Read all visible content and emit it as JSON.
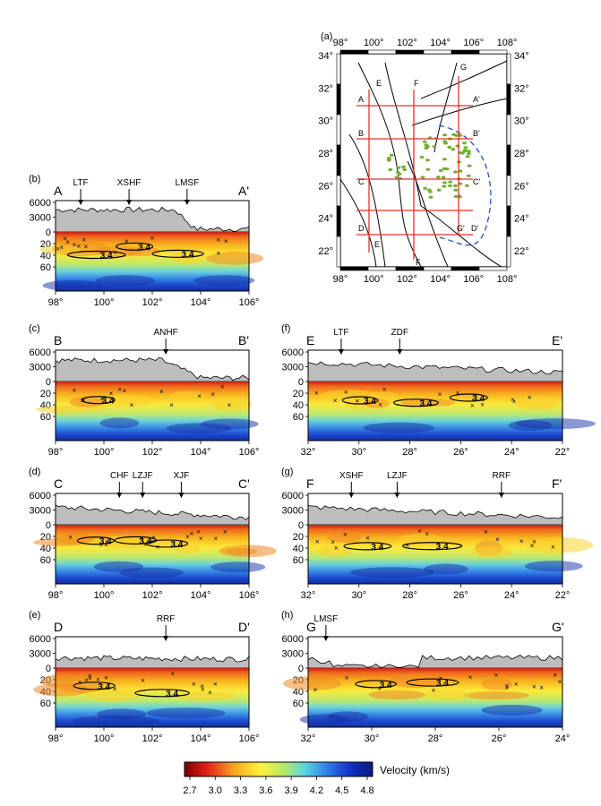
{
  "panels": [
    {
      "id": "b",
      "letter": "(b)",
      "left_label": "A",
      "right_label": "A'",
      "xticks": [
        "98°",
        "100°",
        "102°",
        "104°",
        "106°"
      ],
      "faults": [
        {
          "name": "LTF",
          "x": 0.13
        },
        {
          "name": "XSHF",
          "x": 0.38
        },
        {
          "name": "LMSF",
          "x": 0.68
        }
      ],
      "contours": [
        "3.4",
        "3.4",
        "3.4"
      ]
    },
    {
      "id": "c",
      "letter": "(c)",
      "left_label": "B",
      "right_label": "B'",
      "xticks": [
        "98°",
        "100°",
        "102°",
        "104°",
        "106°"
      ],
      "faults": [
        {
          "name": "ANHF",
          "x": 0.57
        }
      ],
      "contours": [
        "3.4"
      ]
    },
    {
      "id": "d",
      "letter": "(d)",
      "left_label": "C",
      "right_label": "C'",
      "xticks": [
        "98°",
        "100°",
        "102°",
        "104°",
        "106°"
      ],
      "faults": [
        {
          "name": "CHF",
          "x": 0.33
        },
        {
          "name": "LZJF",
          "x": 0.45
        },
        {
          "name": "XJF",
          "x": 0.65
        }
      ],
      "contours": [
        "3.4",
        "3.4",
        "3.4"
      ]
    },
    {
      "id": "e",
      "letter": "(e)",
      "left_label": "D",
      "right_label": "D'",
      "xticks": [
        "98°",
        "100°",
        "102°",
        "104°",
        "106°"
      ],
      "faults": [
        {
          "name": "RRF",
          "x": 0.57
        }
      ],
      "contours": [
        "3.4",
        "3.4"
      ]
    },
    {
      "id": "f",
      "letter": "(f)",
      "left_label": "E",
      "right_label": "E'",
      "xticks": [
        "32°",
        "30°",
        "28°",
        "26°",
        "24°",
        "22°"
      ],
      "faults": [
        {
          "name": "LTF",
          "x": 0.13
        },
        {
          "name": "ZDF",
          "x": 0.36
        }
      ],
      "contours": [
        "3.4",
        "3.4",
        "3.4"
      ]
    },
    {
      "id": "g",
      "letter": "(g)",
      "left_label": "F",
      "right_label": "F'",
      "xticks": [
        "32°",
        "30°",
        "28°",
        "26°",
        "24°",
        "22°"
      ],
      "faults": [
        {
          "name": "XSHF",
          "x": 0.17
        },
        {
          "name": "LZJF",
          "x": 0.35
        },
        {
          "name": "RRF",
          "x": 0.76
        }
      ],
      "contours": [
        "3.4",
        "3.4"
      ]
    },
    {
      "id": "h",
      "letter": "(h)",
      "left_label": "G",
      "right_label": "G'",
      "xticks": [
        "32°",
        "30°",
        "28°",
        "26°",
        "24°"
      ],
      "faults": [
        {
          "name": "LMSF",
          "x": 0.07
        }
      ],
      "contours": [
        "3.4",
        "3.4"
      ]
    }
  ],
  "elevation_ticks": [
    "6000",
    "3000",
    "0"
  ],
  "depth_ticks": [
    "0",
    "20",
    "40",
    "60"
  ],
  "map": {
    "letter": "(a)",
    "lon_ticks": [
      "98°",
      "100°",
      "102°",
      "104°",
      "106°",
      "108°"
    ],
    "lat_ticks": [
      "34°",
      "32°",
      "30°",
      "28°",
      "26°",
      "24°",
      "22°"
    ],
    "profile_labels": [
      "A",
      "A'",
      "B",
      "B'",
      "C",
      "C'",
      "D",
      "D'",
      "E",
      "F",
      "G",
      "G'",
      "E",
      "F"
    ],
    "colors": {
      "profile": "#e8302a",
      "seismicity": "#6fb12e",
      "boundary": "#1e4fd6"
    }
  },
  "colorbar": {
    "label": "Velocity (km/s)",
    "ticks": [
      "2.7",
      "3.0",
      "3.3",
      "3.6",
      "3.9",
      "4.2",
      "4.5",
      "4.8"
    ],
    "colors": [
      "#8b0000",
      "#e83a1a",
      "#f7a21c",
      "#fff23a",
      "#b6e86a",
      "#58d6e0",
      "#2f7ee8",
      "#1032c4",
      "#0b1a7a"
    ]
  }
}
